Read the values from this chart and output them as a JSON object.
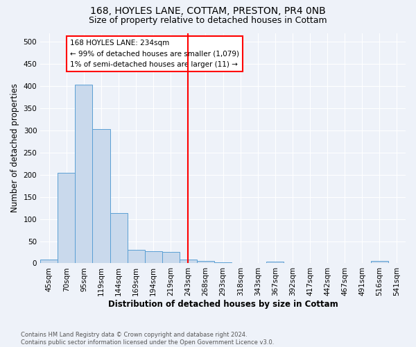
{
  "title1": "168, HOYLES LANE, COTTAM, PRESTON, PR4 0NB",
  "title2": "Size of property relative to detached houses in Cottam",
  "xlabel": "Distribution of detached houses by size in Cottam",
  "ylabel": "Number of detached properties",
  "bin_labels": [
    "45sqm",
    "70sqm",
    "95sqm",
    "119sqm",
    "144sqm",
    "169sqm",
    "194sqm",
    "219sqm",
    "243sqm",
    "268sqm",
    "293sqm",
    "318sqm",
    "343sqm",
    "367sqm",
    "392sqm",
    "417sqm",
    "442sqm",
    "467sqm",
    "491sqm",
    "516sqm",
    "541sqm"
  ],
  "bar_values": [
    9,
    205,
    403,
    303,
    113,
    30,
    27,
    26,
    8,
    6,
    3,
    0,
    0,
    4,
    0,
    0,
    0,
    0,
    0,
    5,
    0
  ],
  "bar_color": "#c9d9ec",
  "bar_edge_color": "#5a9fd4",
  "red_line_x": 8,
  "annotation_line1": "168 HOYLES LANE: 234sqm",
  "annotation_line2": "← 99% of detached houses are smaller (1,079)",
  "annotation_line3": "1% of semi-detached houses are larger (11) →",
  "ylim": [
    0,
    520
  ],
  "yticks": [
    0,
    50,
    100,
    150,
    200,
    250,
    300,
    350,
    400,
    450,
    500
  ],
  "footer1": "Contains HM Land Registry data © Crown copyright and database right 2024.",
  "footer2": "Contains public sector information licensed under the Open Government Licence v3.0.",
  "bg_color": "#eef2f9",
  "grid_color": "#ffffff",
  "title_fontsize": 10,
  "subtitle_fontsize": 9,
  "axis_label_fontsize": 8.5,
  "tick_fontsize": 7.5
}
